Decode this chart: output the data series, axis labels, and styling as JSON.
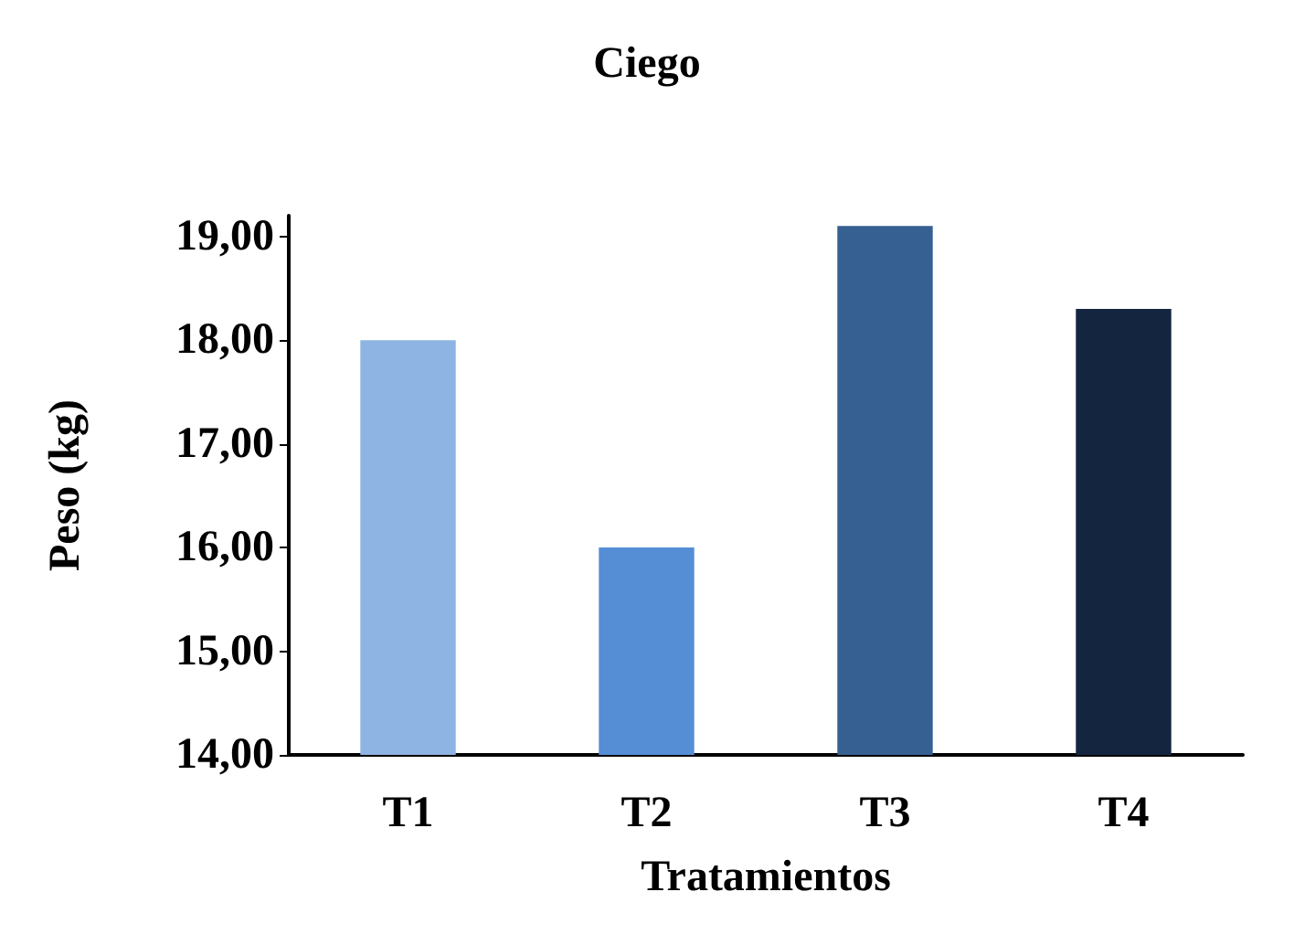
{
  "chart_data": {
    "type": "bar",
    "title": "Ciego",
    "xlabel": "Tratamientos",
    "ylabel": "Peso (kg)",
    "categories": [
      "T1",
      "T2",
      "T3",
      "T4"
    ],
    "values": [
      18.0,
      16.0,
      19.1,
      18.3
    ],
    "colors": [
      "#8db4e2",
      "#558ed5",
      "#366092",
      "#14263f"
    ],
    "ylim": [
      14,
      19.2
    ],
    "yticks": [
      {
        "value": 14,
        "label": "14,00"
      },
      {
        "value": 15,
        "label": "15,00"
      },
      {
        "value": 16,
        "label": "16,00"
      },
      {
        "value": 17,
        "label": "17,00"
      },
      {
        "value": 18,
        "label": "18,00"
      },
      {
        "value": 19,
        "label": "19,00"
      }
    ],
    "grid": false
  }
}
